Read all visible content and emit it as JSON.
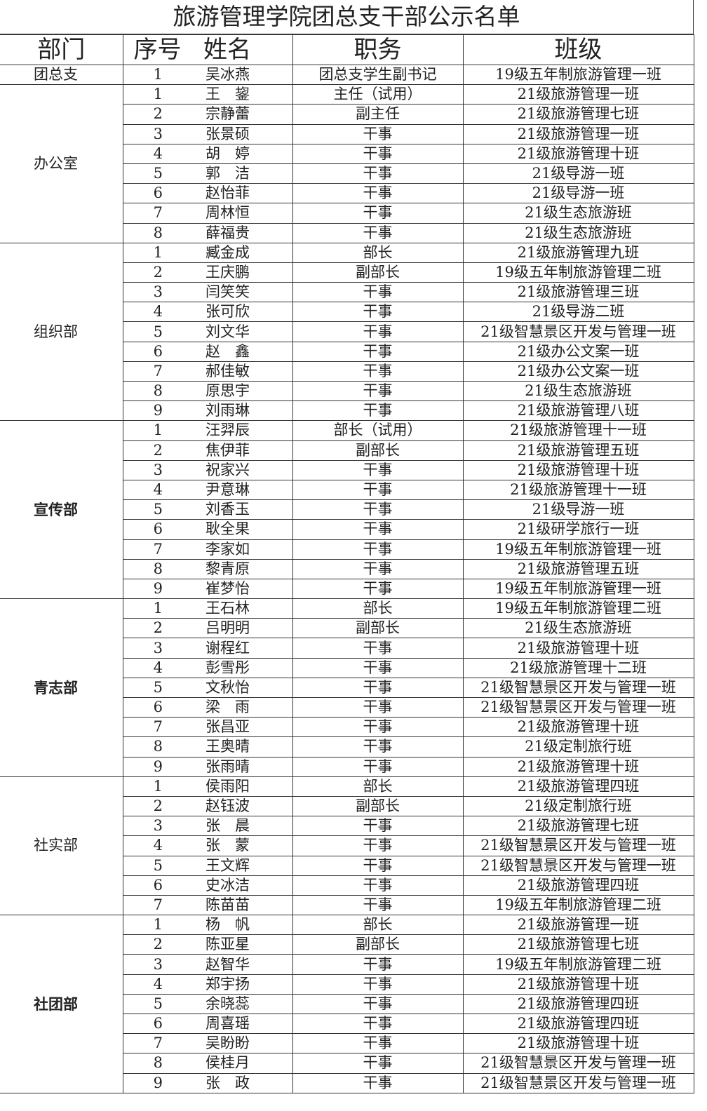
{
  "title": "旅游管理学院团总支干部公示名单",
  "headers": {
    "dept": "部门",
    "seq": "序号",
    "name": "姓名",
    "role": "职务",
    "class": "班级"
  },
  "departments": [
    {
      "name": "团总支",
      "bold": false,
      "members": [
        {
          "seq": "1",
          "name": "吴冰燕",
          "role": "团总支学生副书记",
          "class": "19级五年制旅游管理一班"
        }
      ]
    },
    {
      "name": "办公室",
      "bold": false,
      "members": [
        {
          "seq": "1",
          "name": "王　鋆",
          "role": "主任（试用）",
          "class": "21级旅游管理一班"
        },
        {
          "seq": "2",
          "name": "宗静蕾",
          "role": "副主任",
          "class": "21级旅游管理七班"
        },
        {
          "seq": "3",
          "name": "张景硕",
          "role": "干事",
          "class": "21级旅游管理一班"
        },
        {
          "seq": "4",
          "name": "胡　婷",
          "role": "干事",
          "class": "21级旅游管理十班"
        },
        {
          "seq": "5",
          "name": "郭　洁",
          "role": "干事",
          "class": "21级导游一班"
        },
        {
          "seq": "6",
          "name": "赵怡菲",
          "role": "干事",
          "class": "21级导游一班"
        },
        {
          "seq": "7",
          "name": "周林恒",
          "role": "干事",
          "class": "21级生态旅游班"
        },
        {
          "seq": "8",
          "name": "薛福贵",
          "role": "干事",
          "class": "21级生态旅游班"
        }
      ]
    },
    {
      "name": "组织部",
      "bold": false,
      "members": [
        {
          "seq": "1",
          "name": "臧金成",
          "role": "部长",
          "class": "21级旅游管理九班"
        },
        {
          "seq": "2",
          "name": "王庆鹏",
          "role": "副部长",
          "class": "19级五年制旅游管理二班"
        },
        {
          "seq": "3",
          "name": "闫笑笑",
          "role": "干事",
          "class": "21级旅游管理三班"
        },
        {
          "seq": "4",
          "name": "张可欣",
          "role": "干事",
          "class": "21级导游二班"
        },
        {
          "seq": "5",
          "name": "刘文华",
          "role": "干事",
          "class": "21级智慧景区开发与管理一班"
        },
        {
          "seq": "6",
          "name": "赵　鑫",
          "role": "干事",
          "class": "21级办公文案一班"
        },
        {
          "seq": "7",
          "name": "郝佳敏",
          "role": "干事",
          "class": "21级办公文案一班"
        },
        {
          "seq": "8",
          "name": "原思宇",
          "role": "干事",
          "class": "21级生态旅游班"
        },
        {
          "seq": "9",
          "name": "刘雨琳",
          "role": "干事",
          "class": "21级旅游管理八班"
        }
      ]
    },
    {
      "name": "宣传部",
      "bold": true,
      "members": [
        {
          "seq": "1",
          "name": "汪羿辰",
          "role": "部长（试用）",
          "class": "21级旅游管理十一班"
        },
        {
          "seq": "2",
          "name": "焦伊菲",
          "role": "副部长",
          "class": "21级旅游管理五班"
        },
        {
          "seq": "3",
          "name": "祝家兴",
          "role": "干事",
          "class": "21级旅游管理十班"
        },
        {
          "seq": "4",
          "name": "尹意琳",
          "role": "干事",
          "class": "21级旅游管理十一班"
        },
        {
          "seq": "5",
          "name": "刘香玉",
          "role": "干事",
          "class": "21级导游一班"
        },
        {
          "seq": "6",
          "name": "耿全果",
          "role": "干事",
          "class": "21级研学旅行一班"
        },
        {
          "seq": "7",
          "name": "李家如",
          "role": "干事",
          "class": "19级五年制旅游管理一班"
        },
        {
          "seq": "8",
          "name": "黎青原",
          "role": "干事",
          "class": "21级旅游管理五班"
        },
        {
          "seq": "9",
          "name": "崔梦怡",
          "role": "干事",
          "class": "19级五年制旅游管理一班"
        }
      ]
    },
    {
      "name": "青志部",
      "bold": true,
      "members": [
        {
          "seq": "1",
          "name": "王石林",
          "role": "部长",
          "class": "19级五年制旅游管理二班"
        },
        {
          "seq": "2",
          "name": "吕明明",
          "role": "副部长",
          "class": "21级生态旅游班"
        },
        {
          "seq": "3",
          "name": "谢程红",
          "role": "干事",
          "class": "21级旅游管理十班"
        },
        {
          "seq": "4",
          "name": "彭雪彤",
          "role": "干事",
          "class": "21级旅游管理十二班"
        },
        {
          "seq": "5",
          "name": "文秋怡",
          "role": "干事",
          "class": "21级智慧景区开发与管理一班"
        },
        {
          "seq": "6",
          "name": "梁　雨",
          "role": "干事",
          "class": "21级智慧景区开发与管理一班"
        },
        {
          "seq": "7",
          "name": "张昌亚",
          "role": "干事",
          "class": "21级旅游管理十班"
        },
        {
          "seq": "8",
          "name": "王奥晴",
          "role": "干事",
          "class": "21级定制旅行班"
        },
        {
          "seq": "9",
          "name": "张雨晴",
          "role": "干事",
          "class": "21级旅游管理十班"
        }
      ]
    },
    {
      "name": "社实部",
      "bold": false,
      "members": [
        {
          "seq": "1",
          "name": "侯雨阳",
          "role": "部长",
          "class": "21级旅游管理四班"
        },
        {
          "seq": "2",
          "name": "赵钰波",
          "role": "副部长",
          "class": "21级定制旅行班"
        },
        {
          "seq": "3",
          "name": "张　晨",
          "role": "干事",
          "class": "21级旅游管理七班"
        },
        {
          "seq": "4",
          "name": "张　蒙",
          "role": "干事",
          "class": "21级智慧景区开发与管理一班"
        },
        {
          "seq": "5",
          "name": "王文辉",
          "role": "干事",
          "class": "21级智慧景区开发与管理一班"
        },
        {
          "seq": "6",
          "name": "史冰洁",
          "role": "干事",
          "class": "21级旅游管理四班"
        },
        {
          "seq": "7",
          "name": "陈苗苗",
          "role": "干事",
          "class": "19级五年制旅游管理二班"
        }
      ]
    },
    {
      "name": "社团部",
      "bold": true,
      "members": [
        {
          "seq": "1",
          "name": "杨　帆",
          "role": "部长",
          "class": "21级旅游管理一班"
        },
        {
          "seq": "2",
          "name": "陈亚星",
          "role": "副部长",
          "class": "21级旅游管理七班"
        },
        {
          "seq": "3",
          "name": "赵智华",
          "role": "干事",
          "class": "19级五年制旅游管理二班"
        },
        {
          "seq": "4",
          "name": "郑宇扬",
          "role": "干事",
          "class": "21级旅游管理十班"
        },
        {
          "seq": "5",
          "name": "余晓蕊",
          "role": "干事",
          "class": "21级旅游管理四班"
        },
        {
          "seq": "6",
          "name": "周喜瑶",
          "role": "干事",
          "class": "21级旅游管理四班"
        },
        {
          "seq": "7",
          "name": "吴盼盼",
          "role": "干事",
          "class": "21级旅游管理十班"
        },
        {
          "seq": "8",
          "name": "侯桂月",
          "role": "干事",
          "class": "21级智慧景区开发与管理一班"
        },
        {
          "seq": "9",
          "name": "张　政",
          "role": "干事",
          "class": "21级智慧景区开发与管理一班"
        }
      ]
    }
  ]
}
